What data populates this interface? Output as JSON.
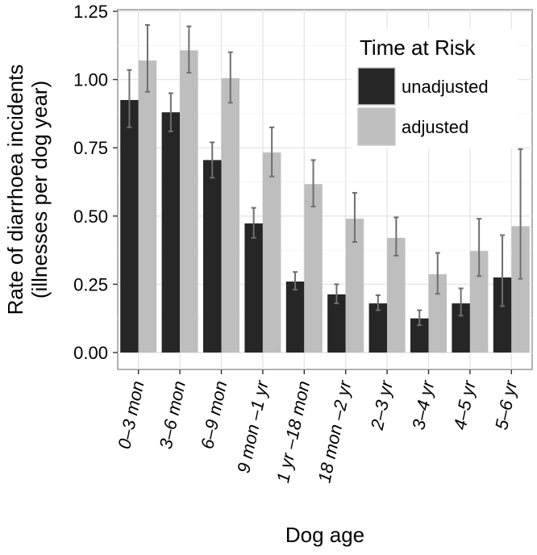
{
  "chart_data": {
    "type": "bar",
    "xlabel": "Dog age",
    "ylabel_line1": "Rate of diarrhoea incidents",
    "ylabel_line2": "(illnesses per dog year)",
    "ylim": [
      0,
      1.25
    ],
    "yticks": [
      {
        "value": 0.0,
        "label": "0.00"
      },
      {
        "value": 0.25,
        "label": "0.25"
      },
      {
        "value": 0.5,
        "label": "0.50"
      },
      {
        "value": 0.75,
        "label": "0.75"
      },
      {
        "value": 1.0,
        "label": "1.00"
      },
      {
        "value": 1.25,
        "label": "1.25"
      }
    ],
    "categories": [
      "0–3 mon",
      "3–6 mon",
      "6–9 mon",
      "9 mon –1 yr",
      "1 yr –18 mon",
      "18 mon –2 yr",
      "2–3 yr",
      "3–4 yr",
      "4–5 yr",
      "5–6 yr"
    ],
    "legend": {
      "title": "Time at Risk",
      "position": "top-right"
    },
    "series": [
      {
        "name": "unadjusted",
        "color": "#262626",
        "values": [
          0.925,
          0.88,
          0.705,
          0.473,
          0.26,
          0.213,
          0.18,
          0.125,
          0.18,
          0.275
        ],
        "lower": [
          0.825,
          0.81,
          0.64,
          0.42,
          0.23,
          0.18,
          0.155,
          0.1,
          0.135,
          0.17
        ],
        "upper": [
          1.035,
          0.95,
          0.77,
          0.53,
          0.295,
          0.25,
          0.21,
          0.155,
          0.235,
          0.43
        ]
      },
      {
        "name": "adjusted",
        "color": "#bebebe",
        "values": [
          1.07,
          1.107,
          1.005,
          0.733,
          0.617,
          0.49,
          0.42,
          0.287,
          0.372,
          0.463
        ],
        "lower": [
          0.955,
          1.025,
          0.915,
          0.645,
          0.535,
          0.405,
          0.355,
          0.215,
          0.28,
          0.27
        ],
        "upper": [
          1.2,
          1.195,
          1.1,
          0.825,
          0.705,
          0.585,
          0.495,
          0.365,
          0.49,
          0.745
        ]
      }
    ]
  }
}
